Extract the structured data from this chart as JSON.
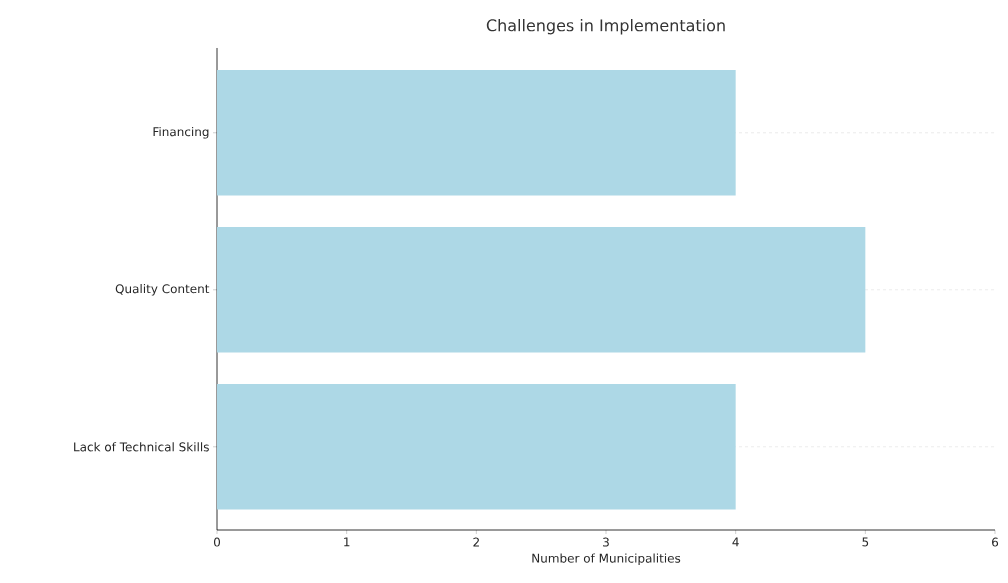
{
  "chart_data": {
    "type": "bar",
    "orientation": "horizontal",
    "title": "Challenges in Implementation",
    "xlabel": "Number of Municipalities",
    "categories": [
      "Financing",
      "Quality Content",
      "Lack of Technical Skills"
    ],
    "values": [
      4,
      5,
      4
    ],
    "color": "#add8e6",
    "xlim": [
      0,
      6
    ],
    "xticks": [
      0,
      1,
      2,
      3,
      4,
      5,
      6
    ],
    "grid": "y"
  }
}
